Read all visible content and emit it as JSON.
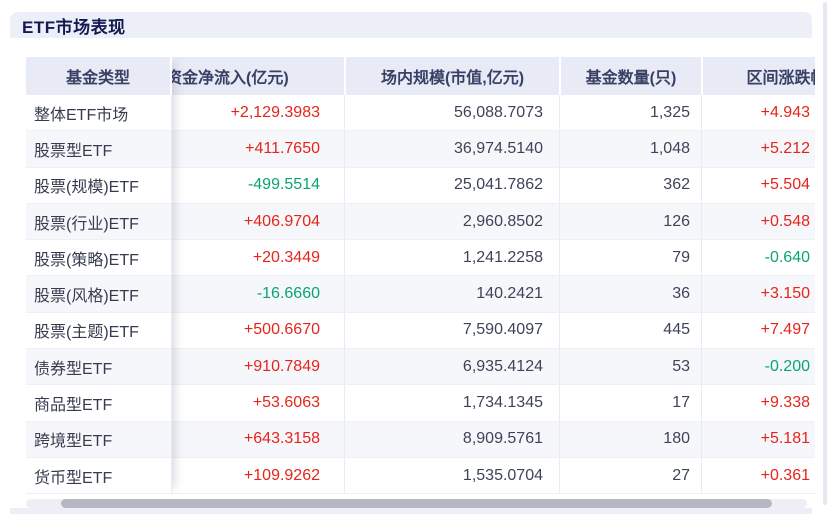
{
  "panel": {
    "title": "ETF市场表现"
  },
  "table": {
    "columns": [
      "基金类型",
      "资金净流入(亿元)",
      "场内规模(市值,亿元)",
      "基金数量(只)",
      "区间涨跌幅"
    ],
    "rows": [
      {
        "fund_type": "整体ETF市场",
        "net_inflow": "+2,129.3983",
        "market_size": "56,088.7073",
        "fund_count": "1,325",
        "range_change": "+4.943"
      },
      {
        "fund_type": "股票型ETF",
        "net_inflow": "+411.7650",
        "market_size": "36,974.5140",
        "fund_count": "1,048",
        "range_change": "+5.212"
      },
      {
        "fund_type": "股票(规模)ETF",
        "net_inflow": "-499.5514",
        "market_size": "25,041.7862",
        "fund_count": "362",
        "range_change": "+5.504"
      },
      {
        "fund_type": "股票(行业)ETF",
        "net_inflow": "+406.9704",
        "market_size": "2,960.8502",
        "fund_count": "126",
        "range_change": "+0.548"
      },
      {
        "fund_type": "股票(策略)ETF",
        "net_inflow": "+20.3449",
        "market_size": "1,241.2258",
        "fund_count": "79",
        "range_change": "-0.640"
      },
      {
        "fund_type": "股票(风格)ETF",
        "net_inflow": "-16.6660",
        "market_size": "140.2421",
        "fund_count": "36",
        "range_change": "+3.150"
      },
      {
        "fund_type": "股票(主题)ETF",
        "net_inflow": "+500.6670",
        "market_size": "7,590.4097",
        "fund_count": "445",
        "range_change": "+7.497"
      },
      {
        "fund_type": "债券型ETF",
        "net_inflow": "+910.7849",
        "market_size": "6,935.4124",
        "fund_count": "53",
        "range_change": "-0.200"
      },
      {
        "fund_type": "商品型ETF",
        "net_inflow": "+53.6063",
        "market_size": "1,734.1345",
        "fund_count": "17",
        "range_change": "+9.338"
      },
      {
        "fund_type": "跨境型ETF",
        "net_inflow": "+643.3158",
        "market_size": "8,909.5761",
        "fund_count": "180",
        "range_change": "+5.181"
      },
      {
        "fund_type": "货币型ETF",
        "net_inflow": "+109.9262",
        "market_size": "1,535.0704",
        "fund_count": "27",
        "range_change": "+0.361"
      }
    ]
  },
  "colors": {
    "positive_red": "#e7241b",
    "negative_green": "#0aa473",
    "header_bg": "#e8eaf6",
    "card_bg": "#edeff8",
    "stripe_bg": "#f6f7fb",
    "title_text": "#131a50"
  }
}
